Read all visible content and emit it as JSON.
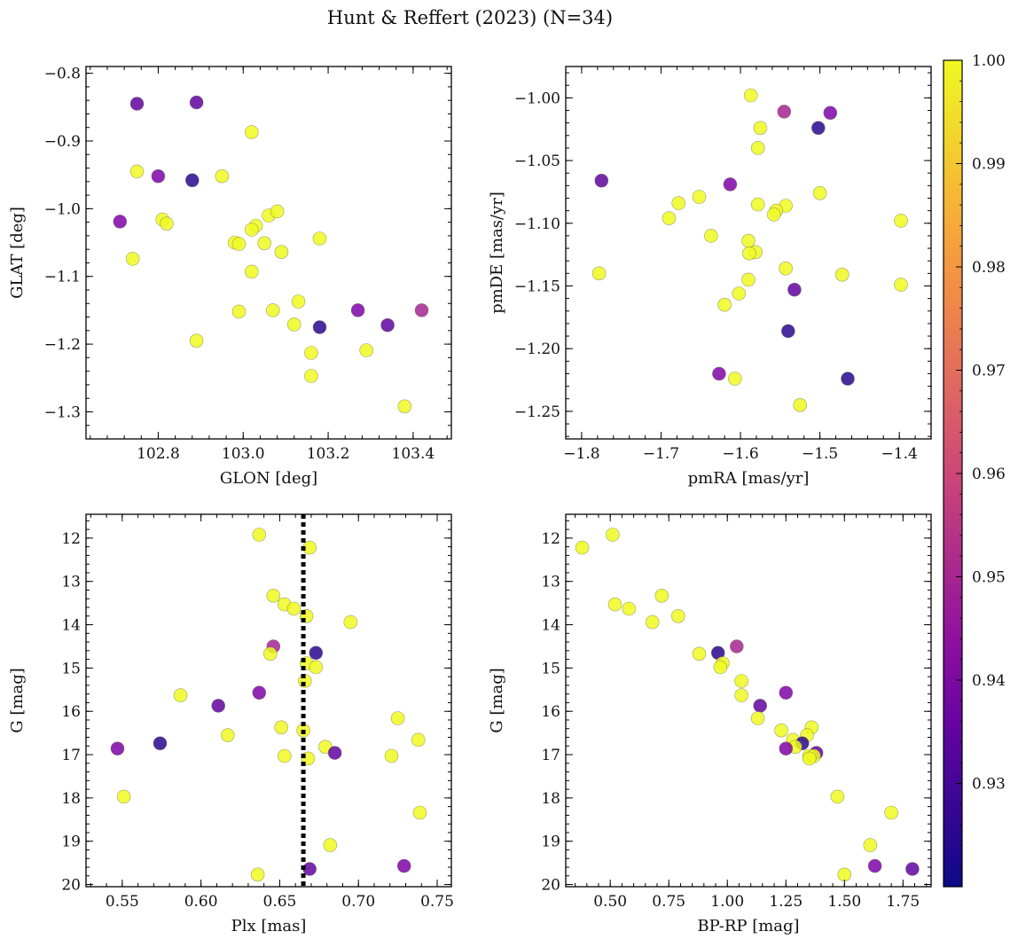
{
  "figure_title": "Hunt & Reffert (2023) (N=34)",
  "colors": {
    "low": "#3a3d9a",
    "high": "#f2f24a",
    "reference_line": "#000000"
  },
  "chart_data": [
    {
      "type": "scatter",
      "id": "glon-glat",
      "title": "",
      "xlabel": "GLON [deg]",
      "ylabel": "GLAT [deg]",
      "xlim": [
        102.63,
        103.49
      ],
      "ylim": [
        -1.34,
        -0.79
      ],
      "y_inverted": false,
      "xticks": [
        102.8,
        103.0,
        103.2,
        103.4
      ],
      "xtick_labels": [
        "102.8",
        "103.0",
        "103.2",
        "103.4"
      ],
      "yticks": [
        -0.8,
        -0.9,
        -1.0,
        -1.1,
        -1.2,
        -1.3
      ],
      "ytick_labels": [
        "−0.8",
        "−0.9",
        "−1.0",
        "−1.1",
        "−1.2",
        "−1.3"
      ],
      "points": [
        {
          "x": 102.75,
          "y": -0.845,
          "c": 0.935
        },
        {
          "x": 102.89,
          "y": -0.843,
          "c": 0.935
        },
        {
          "x": 103.02,
          "y": -0.887,
          "c": 1.0
        },
        {
          "x": 102.75,
          "y": -0.945,
          "c": 1.0
        },
        {
          "x": 102.8,
          "y": -0.952,
          "c": 0.94
        },
        {
          "x": 102.88,
          "y": -0.958,
          "c": 0.925
        },
        {
          "x": 102.95,
          "y": -0.952,
          "c": 1.0
        },
        {
          "x": 102.71,
          "y": -1.019,
          "c": 0.94
        },
        {
          "x": 102.81,
          "y": -1.016,
          "c": 1.0
        },
        {
          "x": 102.82,
          "y": -1.022,
          "c": 1.0
        },
        {
          "x": 102.74,
          "y": -1.074,
          "c": 1.0
        },
        {
          "x": 103.03,
          "y": -1.025,
          "c": 1.0
        },
        {
          "x": 103.02,
          "y": -1.031,
          "c": 1.0
        },
        {
          "x": 103.06,
          "y": -1.01,
          "c": 1.0
        },
        {
          "x": 103.08,
          "y": -1.004,
          "c": 1.0
        },
        {
          "x": 102.98,
          "y": -1.05,
          "c": 1.0
        },
        {
          "x": 102.99,
          "y": -1.052,
          "c": 1.0
        },
        {
          "x": 103.05,
          "y": -1.051,
          "c": 1.0
        },
        {
          "x": 103.18,
          "y": -1.044,
          "c": 1.0
        },
        {
          "x": 103.09,
          "y": -1.064,
          "c": 1.0
        },
        {
          "x": 103.02,
          "y": -1.093,
          "c": 1.0
        },
        {
          "x": 102.99,
          "y": -1.152,
          "c": 1.0
        },
        {
          "x": 103.07,
          "y": -1.15,
          "c": 1.0
        },
        {
          "x": 103.13,
          "y": -1.137,
          "c": 1.0
        },
        {
          "x": 103.12,
          "y": -1.171,
          "c": 1.0
        },
        {
          "x": 103.18,
          "y": -1.175,
          "c": 0.925
        },
        {
          "x": 103.27,
          "y": -1.15,
          "c": 0.94
        },
        {
          "x": 103.34,
          "y": -1.172,
          "c": 0.935
        },
        {
          "x": 103.42,
          "y": -1.15,
          "c": 0.95
        },
        {
          "x": 102.89,
          "y": -1.195,
          "c": 1.0
        },
        {
          "x": 103.16,
          "y": -1.213,
          "c": 1.0
        },
        {
          "x": 103.29,
          "y": -1.209,
          "c": 1.0
        },
        {
          "x": 103.16,
          "y": -1.247,
          "c": 1.0
        },
        {
          "x": 103.38,
          "y": -1.292,
          "c": 1.0
        }
      ]
    },
    {
      "type": "scatter",
      "id": "pmra-pmde",
      "title": "",
      "xlabel": "pmRA [mas/yr]",
      "ylabel": "pmDE [mas/yr]",
      "xlim": [
        -1.82,
        -1.36
      ],
      "ylim": [
        -1.272,
        -0.975
      ],
      "y_inverted": false,
      "xticks": [
        -1.8,
        -1.7,
        -1.6,
        -1.5,
        -1.4
      ],
      "xtick_labels": [
        "−1.8",
        "−1.7",
        "−1.6",
        "−1.5",
        "−1.4"
      ],
      "yticks": [
        -1.0,
        -1.05,
        -1.1,
        -1.15,
        -1.2,
        -1.25
      ],
      "ytick_labels": [
        "−1.00",
        "−1.05",
        "−1.10",
        "−1.15",
        "−1.20",
        "−1.25"
      ],
      "points": [
        {
          "x": -1.587,
          "y": -0.998,
          "c": 1.0
        },
        {
          "x": -1.545,
          "y": -1.011,
          "c": 0.95
        },
        {
          "x": -1.487,
          "y": -1.012,
          "c": 0.94
        },
        {
          "x": -1.575,
          "y": -1.024,
          "c": 1.0
        },
        {
          "x": -1.502,
          "y": -1.024,
          "c": 0.925
        },
        {
          "x": -1.578,
          "y": -1.04,
          "c": 1.0
        },
        {
          "x": -1.775,
          "y": -1.066,
          "c": 0.935
        },
        {
          "x": -1.613,
          "y": -1.069,
          "c": 0.94
        },
        {
          "x": -1.652,
          "y": -1.079,
          "c": 1.0
        },
        {
          "x": -1.678,
          "y": -1.084,
          "c": 1.0
        },
        {
          "x": -1.578,
          "y": -1.085,
          "c": 1.0
        },
        {
          "x": -1.543,
          "y": -1.086,
          "c": 1.0
        },
        {
          "x": -1.5,
          "y": -1.076,
          "c": 1.0
        },
        {
          "x": -1.555,
          "y": -1.09,
          "c": 1.0
        },
        {
          "x": -1.558,
          "y": -1.093,
          "c": 1.0
        },
        {
          "x": -1.69,
          "y": -1.096,
          "c": 1.0
        },
        {
          "x": -1.398,
          "y": -1.098,
          "c": 1.0
        },
        {
          "x": -1.637,
          "y": -1.11,
          "c": 1.0
        },
        {
          "x": -1.59,
          "y": -1.114,
          "c": 1.0
        },
        {
          "x": -1.581,
          "y": -1.123,
          "c": 1.0
        },
        {
          "x": -1.589,
          "y": -1.124,
          "c": 1.0
        },
        {
          "x": -1.543,
          "y": -1.136,
          "c": 1.0
        },
        {
          "x": -1.778,
          "y": -1.14,
          "c": 1.0
        },
        {
          "x": -1.472,
          "y": -1.141,
          "c": 1.0
        },
        {
          "x": -1.398,
          "y": -1.149,
          "c": 1.0
        },
        {
          "x": -1.532,
          "y": -1.153,
          "c": 0.935
        },
        {
          "x": -1.602,
          "y": -1.156,
          "c": 1.0
        },
        {
          "x": -1.59,
          "y": -1.145,
          "c": 1.0
        },
        {
          "x": -1.62,
          "y": -1.165,
          "c": 1.0
        },
        {
          "x": -1.54,
          "y": -1.186,
          "c": 0.925
        },
        {
          "x": -1.627,
          "y": -1.22,
          "c": 0.94
        },
        {
          "x": -1.607,
          "y": -1.224,
          "c": 1.0
        },
        {
          "x": -1.465,
          "y": -1.224,
          "c": 0.925
        },
        {
          "x": -1.525,
          "y": -1.245,
          "c": 1.0
        }
      ]
    },
    {
      "type": "scatter",
      "id": "plx-g",
      "title": "",
      "xlabel": "Plx [mas]",
      "ylabel": "G [mag]",
      "xlim": [
        0.527,
        0.759
      ],
      "ylim": [
        20.05,
        11.45
      ],
      "y_inverted": true,
      "xticks": [
        0.55,
        0.6,
        0.65,
        0.7,
        0.75
      ],
      "xtick_labels": [
        "0.55",
        "0.60",
        "0.65",
        "0.70",
        "0.75"
      ],
      "yticks": [
        12,
        13,
        14,
        15,
        16,
        17,
        18,
        19,
        20
      ],
      "ytick_labels": [
        "12",
        "13",
        "14",
        "15",
        "16",
        "17",
        "18",
        "19",
        "20"
      ],
      "reference_line": {
        "axis": "x",
        "value": 0.665,
        "style": "dotted"
      },
      "points": [
        {
          "x": 0.637,
          "y": 11.92,
          "c": 1.0
        },
        {
          "x": 0.669,
          "y": 12.22,
          "c": 1.0
        },
        {
          "x": 0.646,
          "y": 13.33,
          "c": 1.0
        },
        {
          "x": 0.653,
          "y": 13.53,
          "c": 1.0
        },
        {
          "x": 0.659,
          "y": 13.63,
          "c": 1.0
        },
        {
          "x": 0.667,
          "y": 13.8,
          "c": 1.0
        },
        {
          "x": 0.695,
          "y": 13.94,
          "c": 1.0
        },
        {
          "x": 0.646,
          "y": 14.5,
          "c": 0.95
        },
        {
          "x": 0.644,
          "y": 14.67,
          "c": 1.0
        },
        {
          "x": 0.673,
          "y": 14.65,
          "c": 0.925
        },
        {
          "x": 0.667,
          "y": 14.89,
          "c": 1.0
        },
        {
          "x": 0.673,
          "y": 14.98,
          "c": 1.0
        },
        {
          "x": 0.666,
          "y": 15.3,
          "c": 1.0
        },
        {
          "x": 0.637,
          "y": 15.57,
          "c": 0.94
        },
        {
          "x": 0.587,
          "y": 15.63,
          "c": 1.0
        },
        {
          "x": 0.611,
          "y": 15.87,
          "c": 0.935
        },
        {
          "x": 0.725,
          "y": 16.16,
          "c": 1.0
        },
        {
          "x": 0.651,
          "y": 16.37,
          "c": 1.0
        },
        {
          "x": 0.665,
          "y": 16.44,
          "c": 1.0
        },
        {
          "x": 0.617,
          "y": 16.55,
          "c": 1.0
        },
        {
          "x": 0.738,
          "y": 16.66,
          "c": 1.0
        },
        {
          "x": 0.574,
          "y": 16.74,
          "c": 0.925
        },
        {
          "x": 0.679,
          "y": 16.82,
          "c": 1.0
        },
        {
          "x": 0.547,
          "y": 16.86,
          "c": 0.94
        },
        {
          "x": 0.685,
          "y": 16.96,
          "c": 0.935
        },
        {
          "x": 0.653,
          "y": 17.03,
          "c": 1.0
        },
        {
          "x": 0.721,
          "y": 17.03,
          "c": 1.0
        },
        {
          "x": 0.668,
          "y": 17.09,
          "c": 1.0
        },
        {
          "x": 0.551,
          "y": 17.97,
          "c": 1.0
        },
        {
          "x": 0.739,
          "y": 18.34,
          "c": 1.0
        },
        {
          "x": 0.682,
          "y": 19.09,
          "c": 1.0
        },
        {
          "x": 0.729,
          "y": 19.57,
          "c": 0.94
        },
        {
          "x": 0.669,
          "y": 19.64,
          "c": 0.935
        },
        {
          "x": 0.636,
          "y": 19.77,
          "c": 1.0
        }
      ]
    },
    {
      "type": "scatter",
      "id": "bprp-g",
      "title": "",
      "xlabel": "BP-RP [mag]",
      "ylabel": "G [mag]",
      "xlim": [
        0.31,
        1.87
      ],
      "ylim": [
        20.05,
        11.45
      ],
      "y_inverted": true,
      "xticks": [
        0.5,
        0.75,
        1.0,
        1.25,
        1.5,
        1.75
      ],
      "xtick_labels": [
        "0.50",
        "0.75",
        "1.00",
        "1.25",
        "1.50",
        "1.75"
      ],
      "yticks": [
        12,
        13,
        14,
        15,
        16,
        17,
        18,
        19,
        20
      ],
      "ytick_labels": [
        "12",
        "13",
        "14",
        "15",
        "16",
        "17",
        "18",
        "19",
        "20"
      ],
      "points": [
        {
          "x": 0.51,
          "y": 11.92,
          "c": 1.0
        },
        {
          "x": 0.38,
          "y": 12.22,
          "c": 1.0
        },
        {
          "x": 0.72,
          "y": 13.33,
          "c": 1.0
        },
        {
          "x": 0.52,
          "y": 13.53,
          "c": 1.0
        },
        {
          "x": 0.58,
          "y": 13.63,
          "c": 1.0
        },
        {
          "x": 0.79,
          "y": 13.8,
          "c": 1.0
        },
        {
          "x": 0.68,
          "y": 13.94,
          "c": 1.0
        },
        {
          "x": 1.04,
          "y": 14.5,
          "c": 0.95
        },
        {
          "x": 0.88,
          "y": 14.67,
          "c": 1.0
        },
        {
          "x": 0.96,
          "y": 14.65,
          "c": 0.925
        },
        {
          "x": 0.98,
          "y": 14.89,
          "c": 1.0
        },
        {
          "x": 0.97,
          "y": 14.98,
          "c": 1.0
        },
        {
          "x": 1.06,
          "y": 15.3,
          "c": 1.0
        },
        {
          "x": 1.25,
          "y": 15.57,
          "c": 0.94
        },
        {
          "x": 1.06,
          "y": 15.63,
          "c": 1.0
        },
        {
          "x": 1.14,
          "y": 15.87,
          "c": 0.935
        },
        {
          "x": 1.13,
          "y": 16.16,
          "c": 1.0
        },
        {
          "x": 1.36,
          "y": 16.37,
          "c": 1.0
        },
        {
          "x": 1.23,
          "y": 16.44,
          "c": 1.0
        },
        {
          "x": 1.34,
          "y": 16.55,
          "c": 1.0
        },
        {
          "x": 1.28,
          "y": 16.66,
          "c": 1.0
        },
        {
          "x": 1.32,
          "y": 16.74,
          "c": 0.925
        },
        {
          "x": 1.29,
          "y": 16.82,
          "c": 1.0
        },
        {
          "x": 1.25,
          "y": 16.86,
          "c": 0.94
        },
        {
          "x": 1.38,
          "y": 16.96,
          "c": 0.935
        },
        {
          "x": 1.35,
          "y": 17.03,
          "c": 1.0
        },
        {
          "x": 1.37,
          "y": 17.03,
          "c": 1.0
        },
        {
          "x": 1.35,
          "y": 17.09,
          "c": 1.0
        },
        {
          "x": 1.47,
          "y": 17.97,
          "c": 1.0
        },
        {
          "x": 1.7,
          "y": 18.34,
          "c": 1.0
        },
        {
          "x": 1.61,
          "y": 19.09,
          "c": 1.0
        },
        {
          "x": 1.63,
          "y": 19.57,
          "c": 0.94
        },
        {
          "x": 1.79,
          "y": 19.64,
          "c": 0.935
        },
        {
          "x": 1.5,
          "y": 19.77,
          "c": 1.0
        }
      ]
    }
  ],
  "colorbar": {
    "type": "colorbar",
    "colormap": "plasma",
    "range": [
      0.92,
      1.0
    ],
    "ticks": [
      0.93,
      0.94,
      0.95,
      0.96,
      0.97,
      0.98,
      0.99,
      1.0
    ],
    "tick_labels": [
      "0.93",
      "0.94",
      "0.95",
      "0.96",
      "0.97",
      "0.98",
      "0.99",
      "1.00"
    ]
  }
}
